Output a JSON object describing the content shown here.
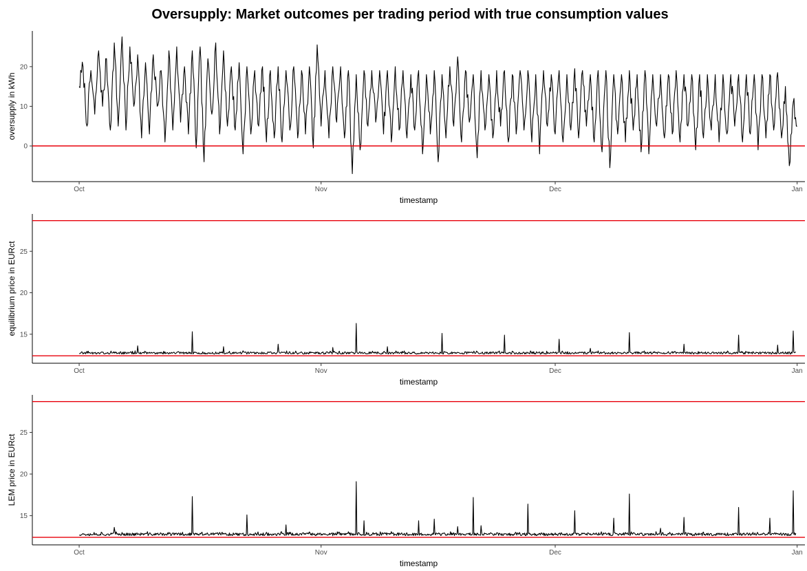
{
  "title": "Oversupply: Market outcomes per trading period with true consumption values",
  "colors": {
    "series": "#000000",
    "reference_line": "#e8000b",
    "background": "#ffffff"
  },
  "chart_data": [
    {
      "type": "line",
      "title": "",
      "xlabel": "timestamp",
      "ylabel": "oversupply in kWh",
      "xlim": [
        "2016-09-25",
        "2017-01-02"
      ],
      "ylim": [
        -9,
        29
      ],
      "x_ticks": [
        {
          "label": "Oct",
          "date": "2016-10-01"
        },
        {
          "label": "Nov",
          "date": "2016-11-01"
        },
        {
          "label": "Dec",
          "date": "2016-12-01"
        },
        {
          "label": "Jan",
          "date": "2017-01-01"
        }
      ],
      "y_ticks": [
        0,
        10,
        20
      ],
      "reference_lines": [
        0
      ],
      "grid": false,
      "series": [
        {
          "values": [
            [
              "2016-10-01",
              15
            ],
            [
              "2016-10-01",
              20
            ],
            [
              "2016-10-02",
              5
            ],
            [
              "2016-10-02",
              19
            ],
            [
              "2016-10-03",
              8
            ],
            [
              "2016-10-03",
              24
            ],
            [
              "2016-10-04",
              10
            ],
            [
              "2016-10-04",
              22
            ],
            [
              "2016-10-05",
              4
            ],
            [
              "2016-10-05",
              26
            ],
            [
              "2016-10-06",
              5
            ],
            [
              "2016-10-06",
              27.5
            ],
            [
              "2016-10-07",
              4
            ],
            [
              "2016-10-07",
              25
            ],
            [
              "2016-10-08",
              10
            ],
            [
              "2016-10-08",
              23
            ],
            [
              "2016-10-09",
              2
            ],
            [
              "2016-10-09",
              21
            ],
            [
              "2016-10-10",
              3
            ],
            [
              "2016-10-10",
              23
            ],
            [
              "2016-10-11",
              10
            ],
            [
              "2016-10-11",
              19
            ],
            [
              "2016-10-12",
              1
            ],
            [
              "2016-10-12",
              24
            ],
            [
              "2016-10-13",
              4
            ],
            [
              "2016-10-13",
              25
            ],
            [
              "2016-10-14",
              6
            ],
            [
              "2016-10-14",
              20
            ],
            [
              "2016-10-15",
              3
            ],
            [
              "2016-10-15",
              24
            ],
            [
              "2016-10-16",
              -0.5
            ],
            [
              "2016-10-16",
              25
            ],
            [
              "2016-10-17",
              -4
            ],
            [
              "2016-10-17",
              22
            ],
            [
              "2016-10-18",
              8
            ],
            [
              "2016-10-18",
              26
            ],
            [
              "2016-10-19",
              3
            ],
            [
              "2016-10-19",
              24
            ],
            [
              "2016-10-20",
              5
            ],
            [
              "2016-10-20",
              20
            ],
            [
              "2016-10-21",
              4
            ],
            [
              "2016-10-21",
              21
            ],
            [
              "2016-10-22",
              -2
            ],
            [
              "2016-10-22",
              20
            ],
            [
              "2016-10-23",
              3
            ],
            [
              "2016-10-23",
              19
            ],
            [
              "2016-10-24",
              5
            ],
            [
              "2016-10-24",
              20
            ],
            [
              "2016-10-25",
              1
            ],
            [
              "2016-10-25",
              19
            ],
            [
              "2016-10-26",
              2
            ],
            [
              "2016-10-26",
              20
            ],
            [
              "2016-10-27",
              1
            ],
            [
              "2016-10-27",
              19
            ],
            [
              "2016-10-28",
              4
            ],
            [
              "2016-10-28",
              20
            ],
            [
              "2016-10-29",
              2
            ],
            [
              "2016-10-29",
              19
            ],
            [
              "2016-10-30",
              3
            ],
            [
              "2016-10-30",
              20
            ],
            [
              "2016-10-31",
              -0.5
            ],
            [
              "2016-10-31",
              25.5
            ],
            [
              "2016-11-01",
              5
            ],
            [
              "2016-11-01",
              19
            ],
            [
              "2016-11-02",
              2
            ],
            [
              "2016-11-02",
              20
            ],
            [
              "2016-11-03",
              6
            ],
            [
              "2016-11-03",
              20
            ],
            [
              "2016-11-04",
              2
            ],
            [
              "2016-11-04",
              19
            ],
            [
              "2016-11-05",
              -7
            ],
            [
              "2016-11-05",
              18
            ],
            [
              "2016-11-06",
              -1
            ],
            [
              "2016-11-06",
              19
            ],
            [
              "2016-11-07",
              5
            ],
            [
              "2016-11-07",
              19
            ],
            [
              "2016-11-08",
              6
            ],
            [
              "2016-11-08",
              19
            ],
            [
              "2016-11-09",
              3
            ],
            [
              "2016-11-09",
              19
            ],
            [
              "2016-11-10",
              1
            ],
            [
              "2016-11-10",
              20
            ],
            [
              "2016-11-11",
              4
            ],
            [
              "2016-11-11",
              19
            ],
            [
              "2016-11-12",
              2
            ],
            [
              "2016-11-12",
              18
            ],
            [
              "2016-11-13",
              4
            ],
            [
              "2016-11-13",
              19
            ],
            [
              "2016-11-14",
              -2
            ],
            [
              "2016-11-14",
              18
            ],
            [
              "2016-11-15",
              3
            ],
            [
              "2016-11-15",
              19
            ],
            [
              "2016-11-16",
              -4
            ],
            [
              "2016-11-16",
              18
            ],
            [
              "2016-11-17",
              2
            ],
            [
              "2016-11-17",
              20
            ],
            [
              "2016-11-18",
              5
            ],
            [
              "2016-11-18",
              22.5
            ],
            [
              "2016-11-19",
              1
            ],
            [
              "2016-11-19",
              19
            ],
            [
              "2016-11-20",
              6
            ],
            [
              "2016-11-20",
              18
            ],
            [
              "2016-11-21",
              -3
            ],
            [
              "2016-11-21",
              19
            ],
            [
              "2016-11-22",
              4
            ],
            [
              "2016-11-22",
              18
            ],
            [
              "2016-11-23",
              2
            ],
            [
              "2016-11-23",
              19
            ],
            [
              "2016-11-24",
              5
            ],
            [
              "2016-11-24",
              19
            ],
            [
              "2016-11-25",
              1
            ],
            [
              "2016-11-25",
              18
            ],
            [
              "2016-11-26",
              3
            ],
            [
              "2016-11-26",
              19
            ],
            [
              "2016-11-27",
              4
            ],
            [
              "2016-11-27",
              19
            ],
            [
              "2016-11-28",
              1
            ],
            [
              "2016-11-28",
              18
            ],
            [
              "2016-11-29",
              -2
            ],
            [
              "2016-11-29",
              19
            ],
            [
              "2016-11-30",
              5
            ],
            [
              "2016-11-30",
              18
            ],
            [
              "2016-12-01",
              3
            ],
            [
              "2016-12-01",
              19
            ],
            [
              "2016-12-02",
              1
            ],
            [
              "2016-12-02",
              18
            ],
            [
              "2016-12-03",
              4
            ],
            [
              "2016-12-03",
              19.5
            ],
            [
              "2016-12-04",
              2
            ],
            [
              "2016-12-04",
              19
            ],
            [
              "2016-12-05",
              5
            ],
            [
              "2016-12-05",
              18
            ],
            [
              "2016-12-06",
              1
            ],
            [
              "2016-12-06",
              19
            ],
            [
              "2016-12-07",
              -1.5
            ],
            [
              "2016-12-07",
              19
            ],
            [
              "2016-12-08",
              -5.5
            ],
            [
              "2016-12-08",
              18
            ],
            [
              "2016-12-09",
              3
            ],
            [
              "2016-12-09",
              18
            ],
            [
              "2016-12-10",
              1
            ],
            [
              "2016-12-10",
              19
            ],
            [
              "2016-12-11",
              4
            ],
            [
              "2016-12-11",
              18
            ],
            [
              "2016-12-12",
              -1.5
            ],
            [
              "2016-12-12",
              19
            ],
            [
              "2016-12-13",
              -2
            ],
            [
              "2016-12-13",
              18
            ],
            [
              "2016-12-14",
              5
            ],
            [
              "2016-12-14",
              18
            ],
            [
              "2016-12-15",
              2
            ],
            [
              "2016-12-15",
              18
            ],
            [
              "2016-12-16",
              3
            ],
            [
              "2016-12-16",
              19
            ],
            [
              "2016-12-17",
              1
            ],
            [
              "2016-12-17",
              18
            ],
            [
              "2016-12-18",
              5
            ],
            [
              "2016-12-18",
              18
            ],
            [
              "2016-12-19",
              -1
            ],
            [
              "2016-12-19",
              18
            ],
            [
              "2016-12-20",
              2
            ],
            [
              "2016-12-20",
              18
            ],
            [
              "2016-12-21",
              4
            ],
            [
              "2016-12-21",
              18
            ],
            [
              "2016-12-22",
              1
            ],
            [
              "2016-12-22",
              18
            ],
            [
              "2016-12-23",
              3
            ],
            [
              "2016-12-23",
              18
            ],
            [
              "2016-12-24",
              5
            ],
            [
              "2016-12-24",
              18
            ],
            [
              "2016-12-25",
              1
            ],
            [
              "2016-12-25",
              18
            ],
            [
              "2016-12-26",
              3
            ],
            [
              "2016-12-26",
              18
            ],
            [
              "2016-12-27",
              -1
            ],
            [
              "2016-12-27",
              18
            ],
            [
              "2016-12-28",
              2
            ],
            [
              "2016-12-28",
              18
            ],
            [
              "2016-12-29",
              4
            ],
            [
              "2016-12-29",
              18.5
            ],
            [
              "2016-12-30",
              2
            ],
            [
              "2016-12-30",
              15
            ],
            [
              "2016-12-31",
              -5
            ],
            [
              "2016-12-31",
              11
            ],
            [
              "2016-12-31",
              5
            ]
          ]
        }
      ]
    },
    {
      "type": "line",
      "title": "",
      "xlabel": "timestamp",
      "ylabel": "equilibrium price in EURct",
      "xlim": [
        "2016-09-25",
        "2017-01-02"
      ],
      "ylim": [
        11.5,
        29.5
      ],
      "x_ticks": [
        {
          "label": "Oct",
          "date": "2016-10-01"
        },
        {
          "label": "Nov",
          "date": "2016-11-01"
        },
        {
          "label": "Dec",
          "date": "2016-12-01"
        },
        {
          "label": "Jan",
          "date": "2017-01-01"
        }
      ],
      "y_ticks": [
        15,
        20,
        25
      ],
      "reference_lines": [
        12.4,
        28.7
      ],
      "grid": false,
      "baseline": 12.6,
      "noise_max": 13.0,
      "spikes": [
        [
          "2016-10-15",
          15.3
        ],
        [
          "2016-11-05",
          16.3
        ],
        [
          "2016-11-16",
          15.1
        ],
        [
          "2016-11-24",
          14.9
        ],
        [
          "2016-12-01",
          14.4
        ],
        [
          "2016-12-10",
          15.2
        ],
        [
          "2016-12-17",
          13.8
        ],
        [
          "2016-12-24",
          14.9
        ],
        [
          "2016-12-31",
          15.4
        ],
        [
          "2016-10-08",
          13.6
        ],
        [
          "2016-10-19",
          13.5
        ],
        [
          "2016-10-26",
          13.8
        ],
        [
          "2016-11-02",
          13.4
        ],
        [
          "2016-11-09",
          13.5
        ],
        [
          "2016-12-05",
          13.3
        ],
        [
          "2016-12-29",
          13.7
        ]
      ]
    },
    {
      "type": "line",
      "title": "",
      "xlabel": "timestamp",
      "ylabel": "LEM price in EURct",
      "xlim": [
        "2016-09-25",
        "2017-01-02"
      ],
      "ylim": [
        11.5,
        29.5
      ],
      "x_ticks": [
        {
          "label": "Oct",
          "date": "2016-10-01"
        },
        {
          "label": "Nov",
          "date": "2016-11-01"
        },
        {
          "label": "Dec",
          "date": "2016-12-01"
        },
        {
          "label": "Jan",
          "date": "2017-01-01"
        }
      ],
      "y_ticks": [
        15,
        20,
        25
      ],
      "reference_lines": [
        12.4,
        28.7
      ],
      "grid": false,
      "baseline": 12.6,
      "noise_max": 13.1,
      "spikes": [
        [
          "2016-10-15",
          17.3
        ],
        [
          "2016-10-22",
          15.1
        ],
        [
          "2016-10-27",
          13.9
        ],
        [
          "2016-11-05",
          19.1
        ],
        [
          "2016-11-06",
          14.4
        ],
        [
          "2016-11-13",
          14.4
        ],
        [
          "2016-11-15",
          14.6
        ],
        [
          "2016-11-20",
          17.2
        ],
        [
          "2016-11-21",
          13.8
        ],
        [
          "2016-11-27",
          16.4
        ],
        [
          "2016-12-03",
          15.6
        ],
        [
          "2016-12-08",
          14.7
        ],
        [
          "2016-12-10",
          17.6
        ],
        [
          "2016-12-17",
          14.8
        ],
        [
          "2016-12-24",
          16.0
        ],
        [
          "2016-12-28",
          14.7
        ],
        [
          "2016-12-31",
          18.0
        ],
        [
          "2016-10-05",
          13.6
        ],
        [
          "2016-11-18",
          13.7
        ],
        [
          "2016-12-14",
          13.5
        ]
      ]
    }
  ]
}
